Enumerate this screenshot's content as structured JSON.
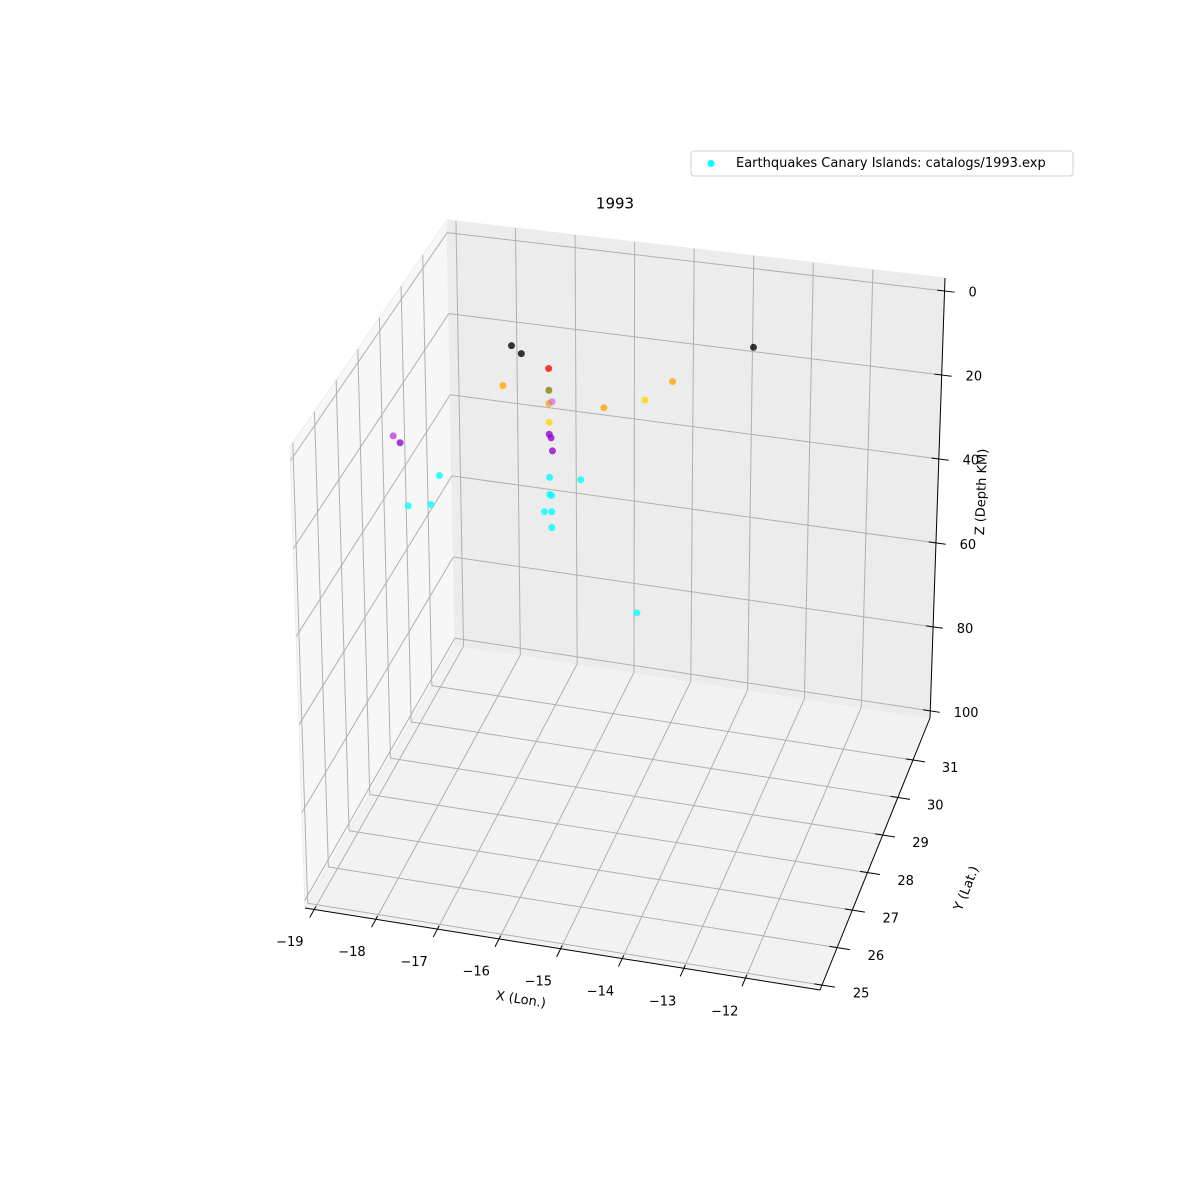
{
  "chart_data": {
    "type": "scatter3d",
    "title": "1993",
    "xlabel": "X (Lon.)",
    "ylabel": "Y (Lat.)",
    "zlabel": "Z (Depth KM)",
    "xlim": [
      -19.15,
      -10.79
    ],
    "ylim": [
      24.87,
      32.12
    ],
    "zlim": [
      101.7,
      -3.1
    ],
    "xticks": [
      {
        "value": -19,
        "label": "−19"
      },
      {
        "value": -18,
        "label": "−18"
      },
      {
        "value": -17,
        "label": "−17"
      },
      {
        "value": -16,
        "label": "−16"
      },
      {
        "value": -15,
        "label": "−15"
      },
      {
        "value": -14,
        "label": "−14"
      },
      {
        "value": -13,
        "label": "−13"
      },
      {
        "value": -12,
        "label": "−12"
      }
    ],
    "yticks": [
      25,
      26,
      27,
      28,
      29,
      30,
      31
    ],
    "zticks": [
      0,
      20,
      40,
      60,
      80,
      100
    ],
    "grid": true,
    "legend": "upper right",
    "series": [
      {
        "name": "Earthquakes Canary Islands: catalogs/1993.exp",
        "color": "#00ffff",
        "colors": [
          "#000000",
          "#000000",
          "#000000",
          "#ff0000",
          "#808000",
          "#ffa500",
          "#da70d6",
          "#ffd700",
          "#9400d3",
          "#9400d3",
          "#9400d3",
          "#00ffff",
          "#00ffff",
          "#00ffff",
          "#00ffff",
          "#00ffff",
          "#00ffff",
          "#ffa500",
          "#ffa500",
          "#ffd700",
          "#ffa500",
          "#b040d8",
          "#9400d3",
          "#00ffff",
          "#00ffff",
          "#00ffff",
          "#00ffff",
          "#00ffff"
        ],
        "x": [
          -17.29,
          -17.13,
          -13.31,
          -16.27,
          -16.27,
          -16.27,
          -16.22,
          -16.27,
          -16.27,
          -16.24,
          -16.22,
          -16.27,
          -16.27,
          -16.24,
          -16.24,
          -16.36,
          -16.24,
          -17.44,
          -14.32,
          -14.77,
          -15.44,
          -18.64,
          -18.53,
          -17.9,
          -18.42,
          -18.05,
          -15.76,
          -14.84
        ],
        "y": [
          29.84,
          29.84,
          29.84,
          28.6,
          28.6,
          28.6,
          28.6,
          28.6,
          28.6,
          28.6,
          28.6,
          28.6,
          28.6,
          28.6,
          28.6,
          28.6,
          28.6,
          29.84,
          28.8,
          28.8,
          28.8,
          28.08,
          28.08,
          28.08,
          28.08,
          28.08,
          28.6,
          28.6
        ],
        "z": [
          6.6,
          8.2,
          0,
          0.8,
          5.9,
          9,
          8.5,
          13.4,
          16.2,
          17,
          20,
          26.3,
          30.3,
          30.5,
          34.3,
          34.5,
          38,
          16.4,
          1.9,
          7,
          10,
          17,
          18.4,
          24.9,
          33,
          32,
          25.9,
          55.2
        ]
      }
    ]
  }
}
